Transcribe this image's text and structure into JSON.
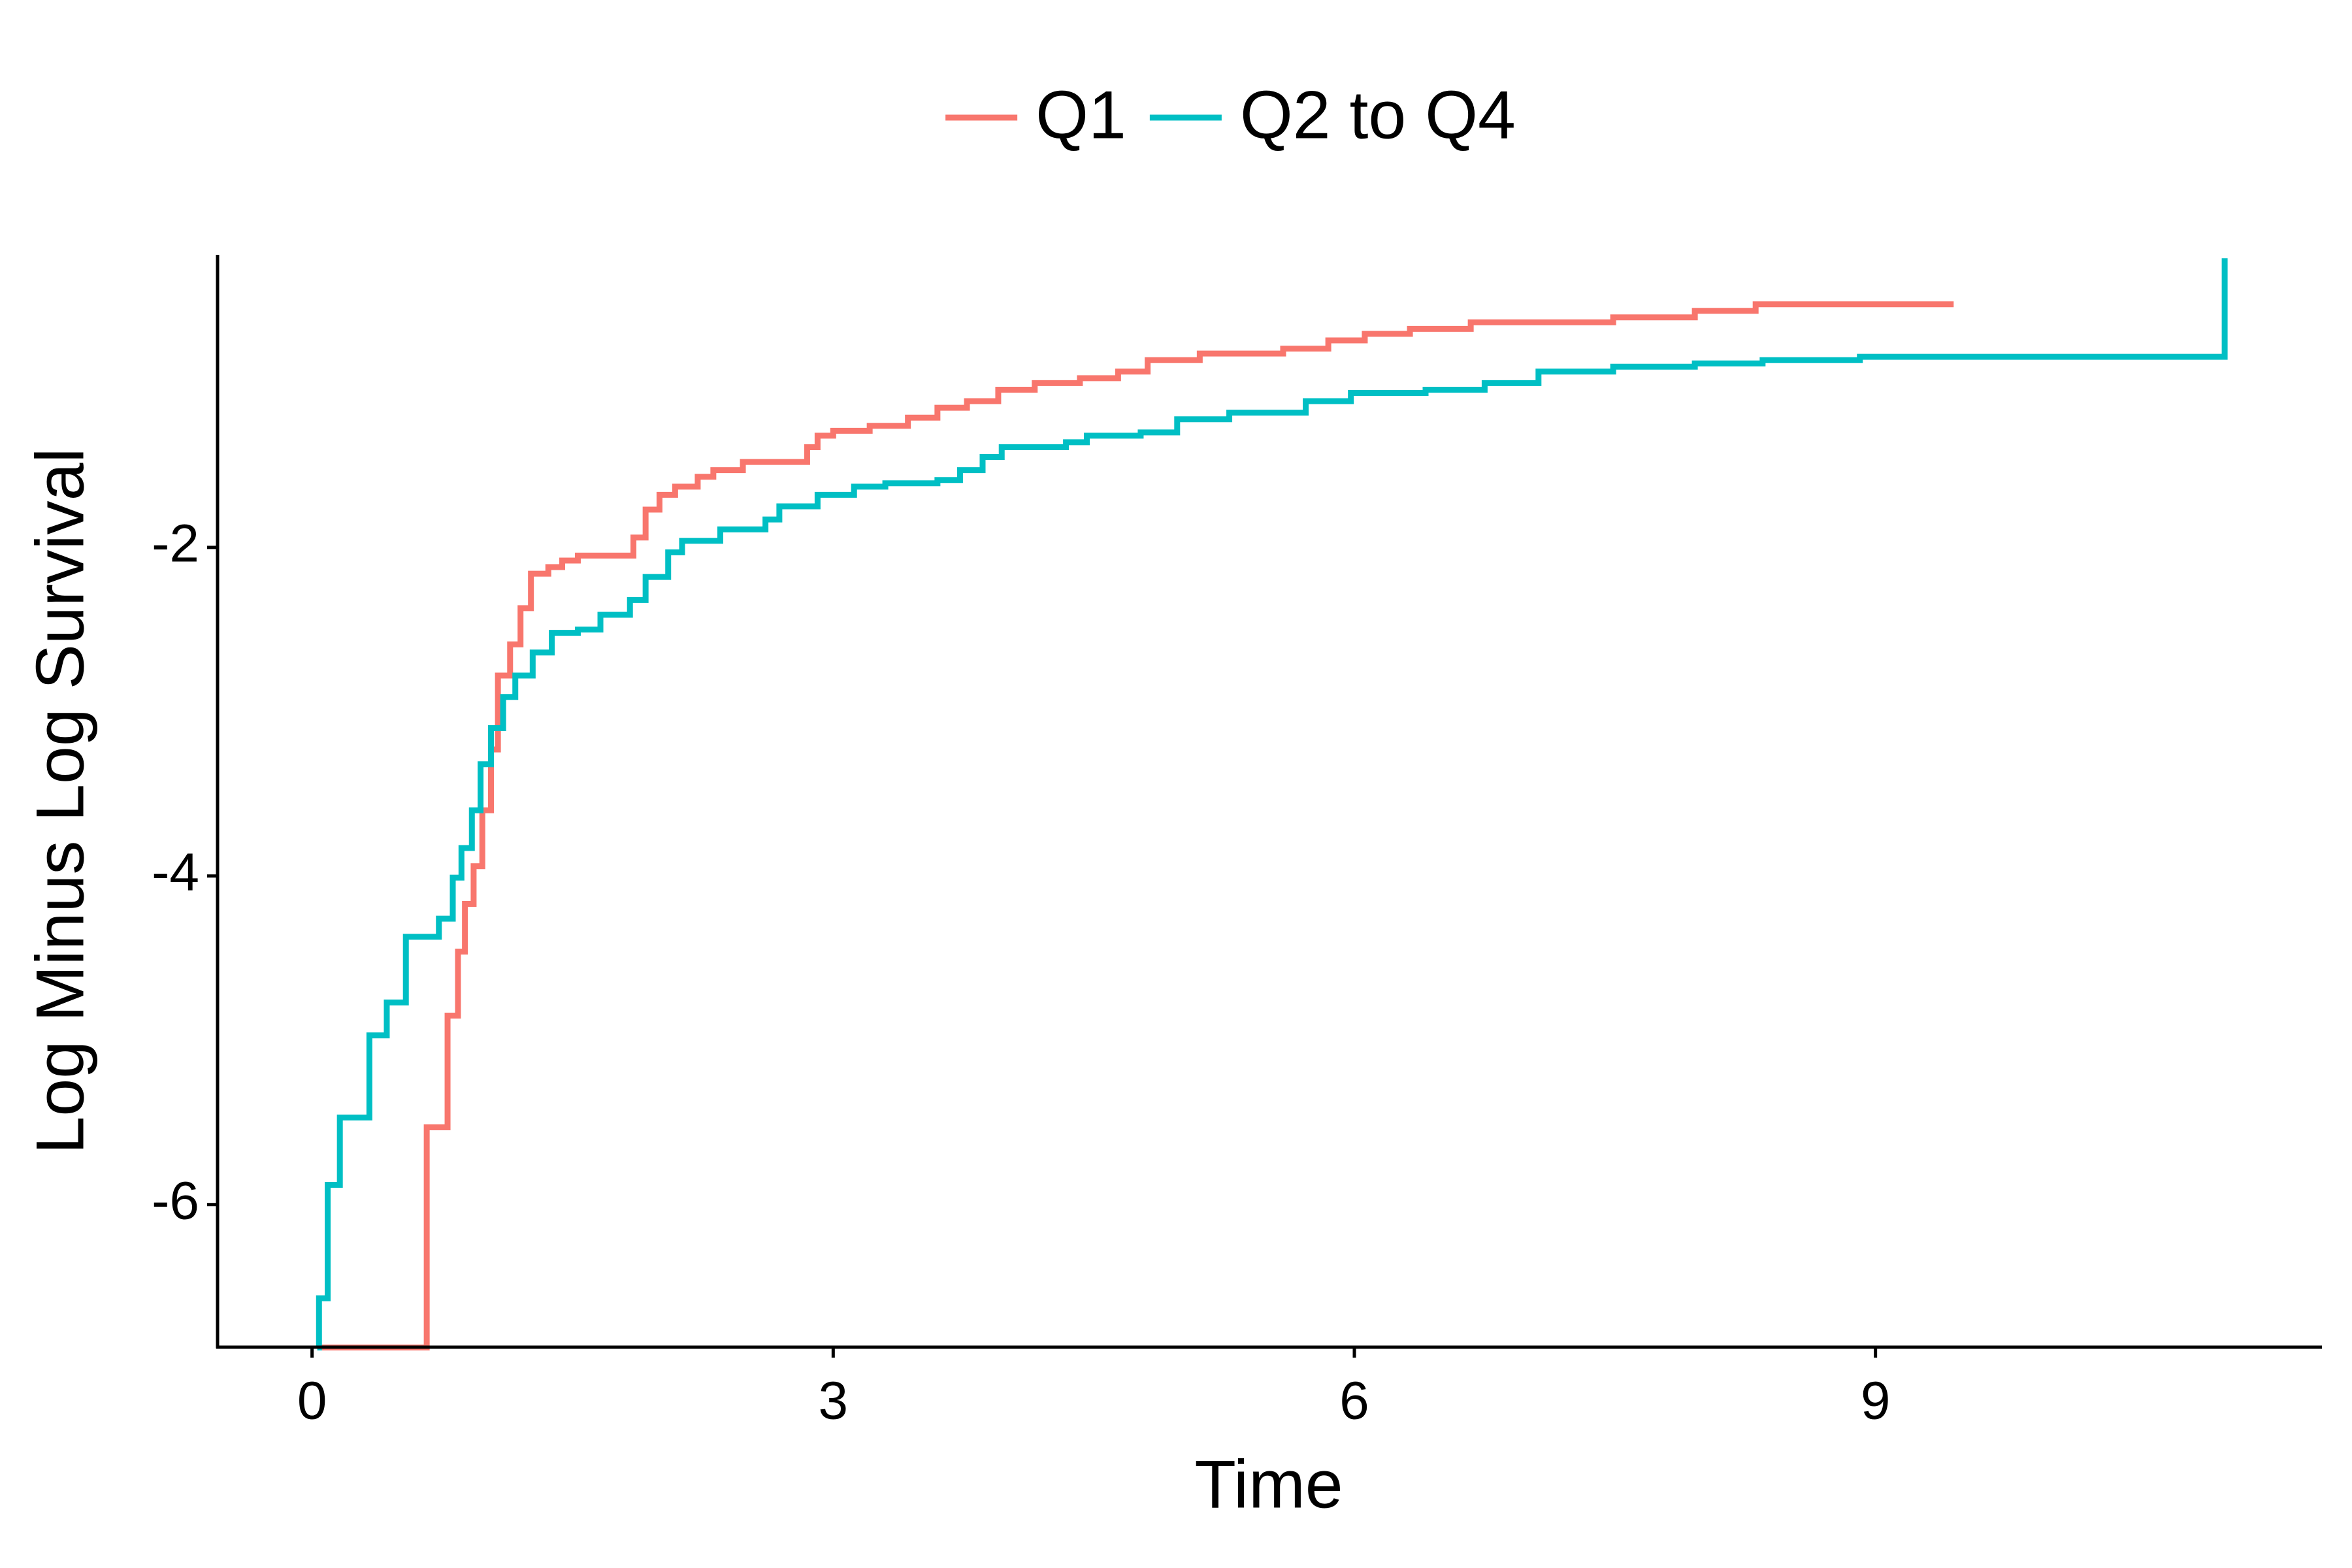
{
  "chart_data": {
    "type": "step",
    "xlabel": "Time",
    "ylabel": "Log Minus Log Survival",
    "xlim": [
      -0.544,
      11.57
    ],
    "ylim": [
      -6.868,
      -0.219
    ],
    "xticks": [
      0,
      3,
      6,
      9
    ],
    "yticks": [
      -6,
      -4,
      -2
    ],
    "legend": "top",
    "series": [
      {
        "name": "Q1",
        "color": "#f8766d",
        "x": [
          0.03,
          0.66,
          0.78,
          0.84,
          0.88,
          0.93,
          0.98,
          1.03,
          1.07,
          1.14,
          1.2,
          1.26,
          1.36,
          1.44,
          1.53,
          1.85,
          1.92,
          2.0,
          2.09,
          2.22,
          2.31,
          2.48,
          2.85,
          2.91,
          3.0,
          3.21,
          3.43,
          3.6,
          3.77,
          3.95,
          4.16,
          4.42,
          4.64,
          4.81,
          5.11,
          5.59,
          5.85,
          6.06,
          6.32,
          6.67,
          7.49,
          7.96,
          8.31,
          9.45
        ],
        "values": [
          -6.87,
          -5.53,
          -4.85,
          -4.46,
          -4.17,
          -3.94,
          -3.6,
          -3.23,
          -2.78,
          -2.59,
          -2.37,
          -2.16,
          -2.12,
          -2.08,
          -2.05,
          -1.94,
          -1.77,
          -1.68,
          -1.63,
          -1.57,
          -1.53,
          -1.48,
          -1.39,
          -1.32,
          -1.29,
          -1.26,
          -1.21,
          -1.15,
          -1.11,
          -1.04,
          -1.0,
          -0.97,
          -0.93,
          -0.86,
          -0.82,
          -0.79,
          -0.74,
          -0.7,
          -0.67,
          -0.63,
          -0.6,
          -0.56,
          -0.52,
          -0.52
        ]
      },
      {
        "name": "Q2 to Q4",
        "color": "#00bfc4",
        "x": [
          0.03,
          0.04,
          0.09,
          0.16,
          0.33,
          0.43,
          0.54,
          0.73,
          0.81,
          0.86,
          0.92,
          0.97,
          1.03,
          1.1,
          1.17,
          1.27,
          1.38,
          1.53,
          1.66,
          1.83,
          1.92,
          2.05,
          2.13,
          2.35,
          2.61,
          2.69,
          2.91,
          3.12,
          3.3,
          3.6,
          3.73,
          3.86,
          3.97,
          4.34,
          4.46,
          4.77,
          4.98,
          5.28,
          5.72,
          5.98,
          6.41,
          6.75,
          7.06,
          7.49,
          7.96,
          8.35,
          8.91,
          11.01
        ],
        "values": [
          -6.87,
          -6.57,
          -5.88,
          -5.47,
          -4.97,
          -4.77,
          -4.37,
          -4.26,
          -4.01,
          -3.83,
          -3.6,
          -3.32,
          -3.1,
          -2.91,
          -2.78,
          -2.64,
          -2.52,
          -2.5,
          -2.41,
          -2.32,
          -2.18,
          -2.03,
          -1.96,
          -1.89,
          -1.83,
          -1.75,
          -1.68,
          -1.63,
          -1.61,
          -1.59,
          -1.53,
          -1.45,
          -1.39,
          -1.36,
          -1.32,
          -1.3,
          -1.22,
          -1.18,
          -1.11,
          -1.06,
          -1.04,
          -1.0,
          -0.93,
          -0.9,
          -0.88,
          -0.86,
          -0.84,
          -0.24
        ]
      }
    ]
  }
}
